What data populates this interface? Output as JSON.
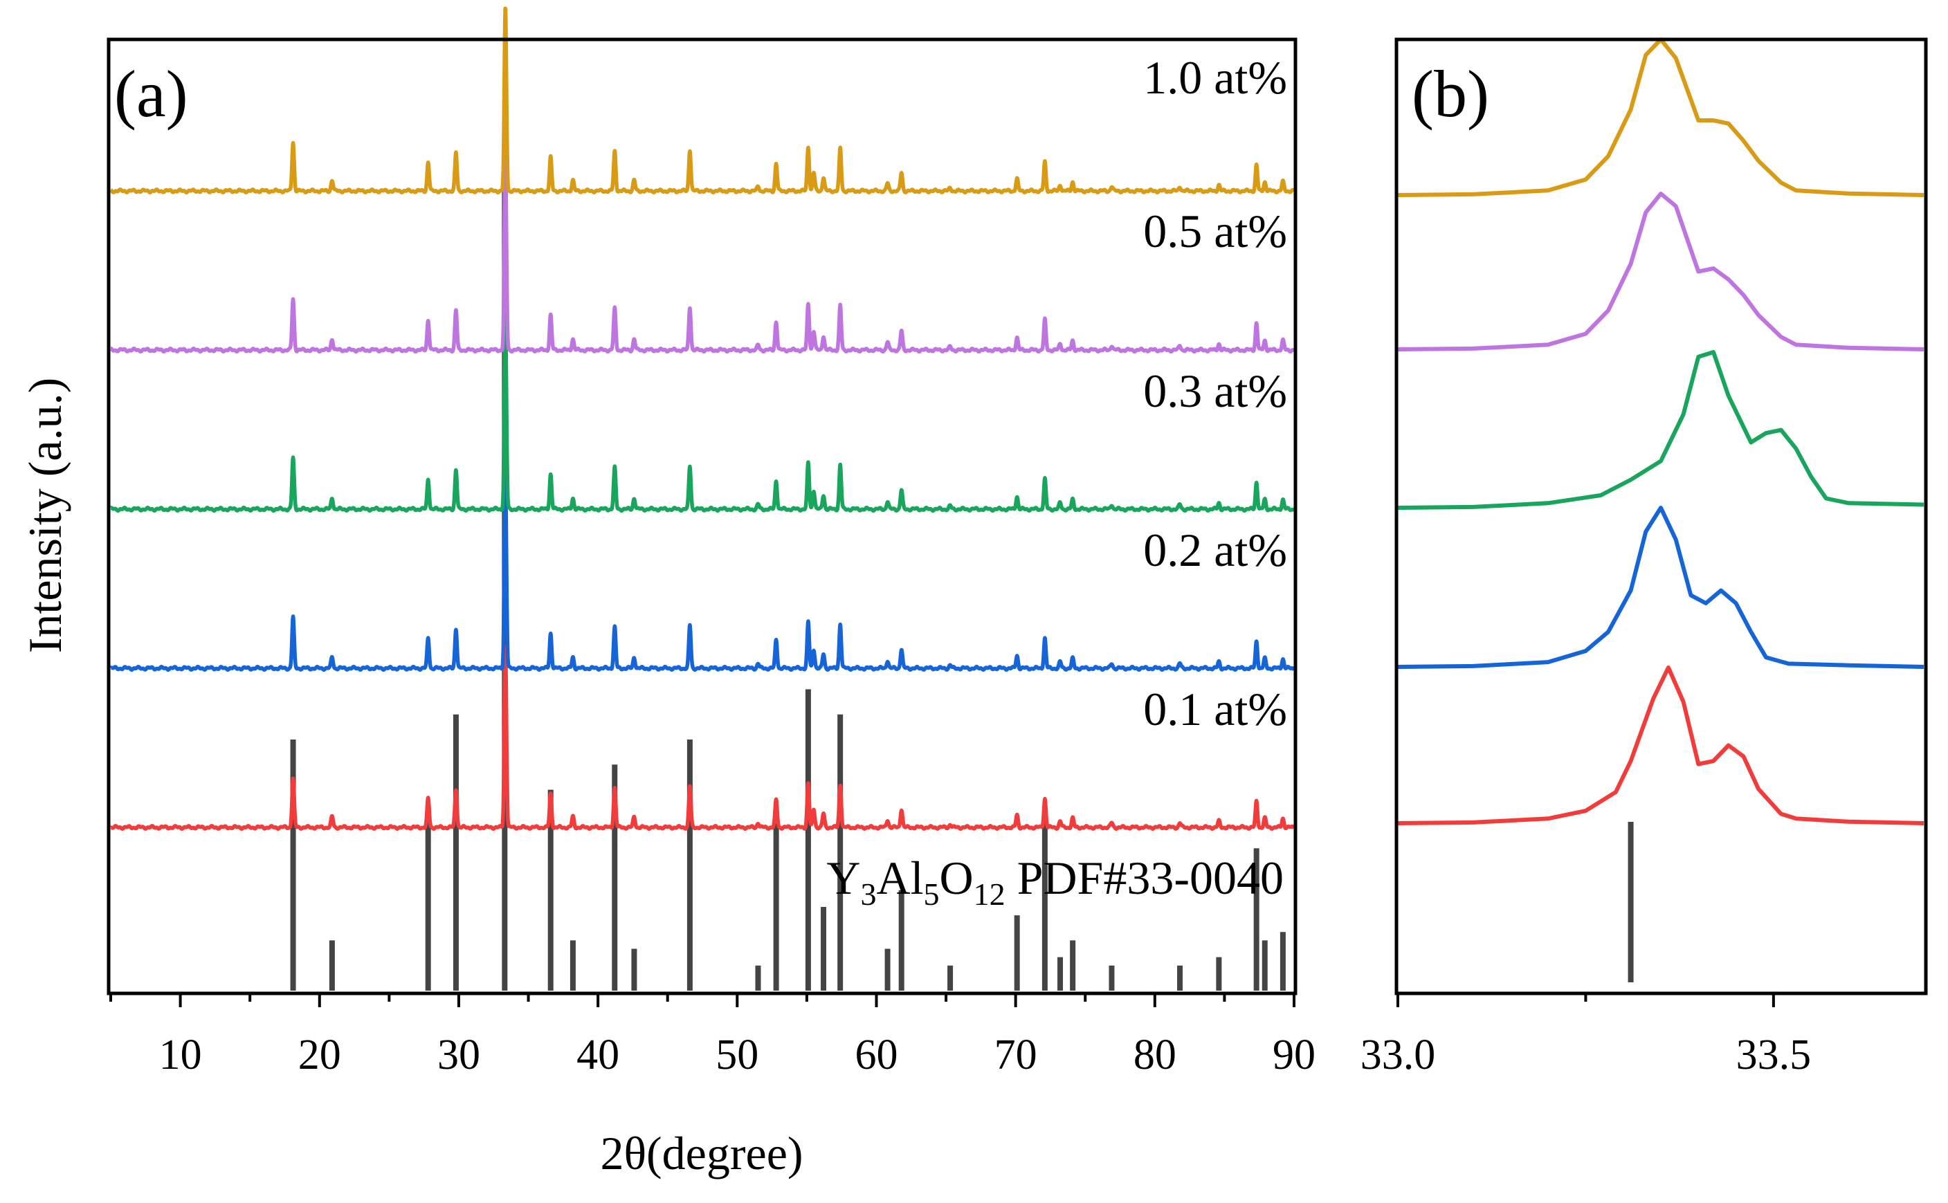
{
  "chart_data": [
    {
      "type": "line",
      "panel": "(a)",
      "xlabel": "2θ(degree)",
      "ylabel": "Intensity (a.u.)",
      "xlim": [
        5,
        90
      ],
      "xticks": [
        10,
        20,
        30,
        40,
        50,
        60,
        70,
        80,
        90
      ],
      "reference": {
        "label_pre": "Y",
        "label_s1": "3",
        "label_mid1": "Al",
        "label_s2": "5",
        "label_mid2": "O",
        "label_s3": "12",
        "label_post": " PDF#33-0040",
        "color": "#444444",
        "peaks": [
          {
            "x": 18.1,
            "h": 0.3
          },
          {
            "x": 20.9,
            "h": 0.06
          },
          {
            "x": 27.8,
            "h": 0.22
          },
          {
            "x": 29.8,
            "h": 0.33
          },
          {
            "x": 33.3,
            "h": 1.0
          },
          {
            "x": 36.6,
            "h": 0.24
          },
          {
            "x": 38.2,
            "h": 0.06
          },
          {
            "x": 41.2,
            "h": 0.27
          },
          {
            "x": 42.6,
            "h": 0.05
          },
          {
            "x": 46.6,
            "h": 0.3
          },
          {
            "x": 51.5,
            "h": 0.03
          },
          {
            "x": 52.8,
            "h": 0.2
          },
          {
            "x": 55.1,
            "h": 0.36
          },
          {
            "x": 56.2,
            "h": 0.1
          },
          {
            "x": 57.4,
            "h": 0.33
          },
          {
            "x": 60.8,
            "h": 0.05
          },
          {
            "x": 61.8,
            "h": 0.12
          },
          {
            "x": 65.3,
            "h": 0.03
          },
          {
            "x": 70.1,
            "h": 0.09
          },
          {
            "x": 72.1,
            "h": 0.2
          },
          {
            "x": 73.2,
            "h": 0.04
          },
          {
            "x": 74.1,
            "h": 0.06
          },
          {
            "x": 76.9,
            "h": 0.03
          },
          {
            "x": 81.8,
            "h": 0.03
          },
          {
            "x": 84.6,
            "h": 0.04
          },
          {
            "x": 87.3,
            "h": 0.17
          },
          {
            "x": 87.9,
            "h": 0.06
          },
          {
            "x": 89.2,
            "h": 0.07
          }
        ]
      },
      "series": [
        {
          "name": "0.1 at%",
          "color": "#f23c3c"
        },
        {
          "name": "0.2 at%",
          "color": "#1565d8"
        },
        {
          "name": "0.3 at%",
          "color": "#18a55c"
        },
        {
          "name": "0.5 at%",
          "color": "#bf75e0"
        },
        {
          "name": "1.0 at%",
          "color": "#d99a14"
        }
      ],
      "peaks": [
        {
          "x": 18.1,
          "h": 0.32
        },
        {
          "x": 20.9,
          "h": 0.07
        },
        {
          "x": 27.8,
          "h": 0.19
        },
        {
          "x": 29.8,
          "h": 0.25
        },
        {
          "x": 33.35,
          "h": 1.0
        },
        {
          "x": 36.6,
          "h": 0.22
        },
        {
          "x": 38.2,
          "h": 0.07
        },
        {
          "x": 41.2,
          "h": 0.26
        },
        {
          "x": 42.6,
          "h": 0.07
        },
        {
          "x": 46.6,
          "h": 0.27
        },
        {
          "x": 51.5,
          "h": 0.03
        },
        {
          "x": 52.8,
          "h": 0.18
        },
        {
          "x": 55.1,
          "h": 0.29
        },
        {
          "x": 55.5,
          "h": 0.12
        },
        {
          "x": 56.2,
          "h": 0.09
        },
        {
          "x": 57.4,
          "h": 0.28
        },
        {
          "x": 60.8,
          "h": 0.05
        },
        {
          "x": 61.8,
          "h": 0.12
        },
        {
          "x": 65.3,
          "h": 0.02
        },
        {
          "x": 70.1,
          "h": 0.08
        },
        {
          "x": 72.1,
          "h": 0.19
        },
        {
          "x": 73.2,
          "h": 0.04
        },
        {
          "x": 74.1,
          "h": 0.06
        },
        {
          "x": 76.9,
          "h": 0.03
        },
        {
          "x": 81.8,
          "h": 0.03
        },
        {
          "x": 84.6,
          "h": 0.04
        },
        {
          "x": 87.3,
          "h": 0.17
        },
        {
          "x": 87.9,
          "h": 0.06
        },
        {
          "x": 89.2,
          "h": 0.06
        }
      ]
    },
    {
      "type": "line",
      "panel": "(b)",
      "xlim": [
        33.0,
        33.7
      ],
      "xticks": [
        "33.0",
        "33.5"
      ],
      "reference_peak": {
        "x": 33.31,
        "h": 1.0
      },
      "series": [
        {
          "name": "0.1 at%",
          "color": "#f23c3c",
          "x": [
            33.0,
            33.1,
            33.2,
            33.25,
            33.29,
            33.31,
            33.34,
            33.36,
            33.38,
            33.4,
            33.42,
            33.44,
            33.46,
            33.48,
            33.51,
            33.53,
            33.6,
            33.7
          ],
          "y": [
            0.0,
            0.005,
            0.03,
            0.08,
            0.2,
            0.4,
            0.8,
            1.0,
            0.78,
            0.38,
            0.4,
            0.5,
            0.43,
            0.22,
            0.06,
            0.03,
            0.01,
            0.0
          ]
        },
        {
          "name": "0.2 at%",
          "color": "#1565d8",
          "x": [
            33.0,
            33.1,
            33.2,
            33.25,
            33.28,
            33.31,
            33.33,
            33.35,
            33.37,
            33.39,
            33.41,
            33.43,
            33.45,
            33.47,
            33.49,
            33.52,
            33.6,
            33.7
          ],
          "y": [
            0.0,
            0.005,
            0.03,
            0.1,
            0.22,
            0.48,
            0.85,
            1.0,
            0.8,
            0.45,
            0.4,
            0.48,
            0.4,
            0.22,
            0.06,
            0.02,
            0.01,
            0.0
          ]
        },
        {
          "name": "0.3 at%",
          "color": "#18a55c",
          "x": [
            33.0,
            33.1,
            33.2,
            33.27,
            33.31,
            33.35,
            33.38,
            33.4,
            33.42,
            33.44,
            33.47,
            33.49,
            33.51,
            33.53,
            33.55,
            33.57,
            33.6,
            33.7
          ],
          "y": [
            0.0,
            0.005,
            0.03,
            0.08,
            0.18,
            0.3,
            0.6,
            0.97,
            1.0,
            0.72,
            0.42,
            0.48,
            0.5,
            0.38,
            0.2,
            0.06,
            0.03,
            0.02
          ]
        },
        {
          "name": "0.5 at%",
          "color": "#bf75e0",
          "x": [
            33.0,
            33.1,
            33.2,
            33.25,
            33.28,
            33.31,
            33.33,
            33.35,
            33.37,
            33.4,
            33.42,
            33.44,
            33.46,
            33.48,
            33.51,
            33.53,
            33.6,
            33.7
          ],
          "y": [
            0.0,
            0.005,
            0.03,
            0.1,
            0.25,
            0.55,
            0.88,
            1.0,
            0.92,
            0.5,
            0.52,
            0.45,
            0.35,
            0.22,
            0.08,
            0.03,
            0.01,
            0.0
          ]
        },
        {
          "name": "1.0 at%",
          "color": "#d99a14",
          "x": [
            33.0,
            33.1,
            33.2,
            33.25,
            33.28,
            33.31,
            33.33,
            33.35,
            33.37,
            33.4,
            33.42,
            33.44,
            33.46,
            33.48,
            33.51,
            33.53,
            33.6,
            33.7
          ],
          "y": [
            0.0,
            0.005,
            0.03,
            0.1,
            0.25,
            0.55,
            0.9,
            1.0,
            0.88,
            0.48,
            0.48,
            0.46,
            0.35,
            0.22,
            0.08,
            0.03,
            0.01,
            0.0
          ]
        }
      ]
    }
  ]
}
